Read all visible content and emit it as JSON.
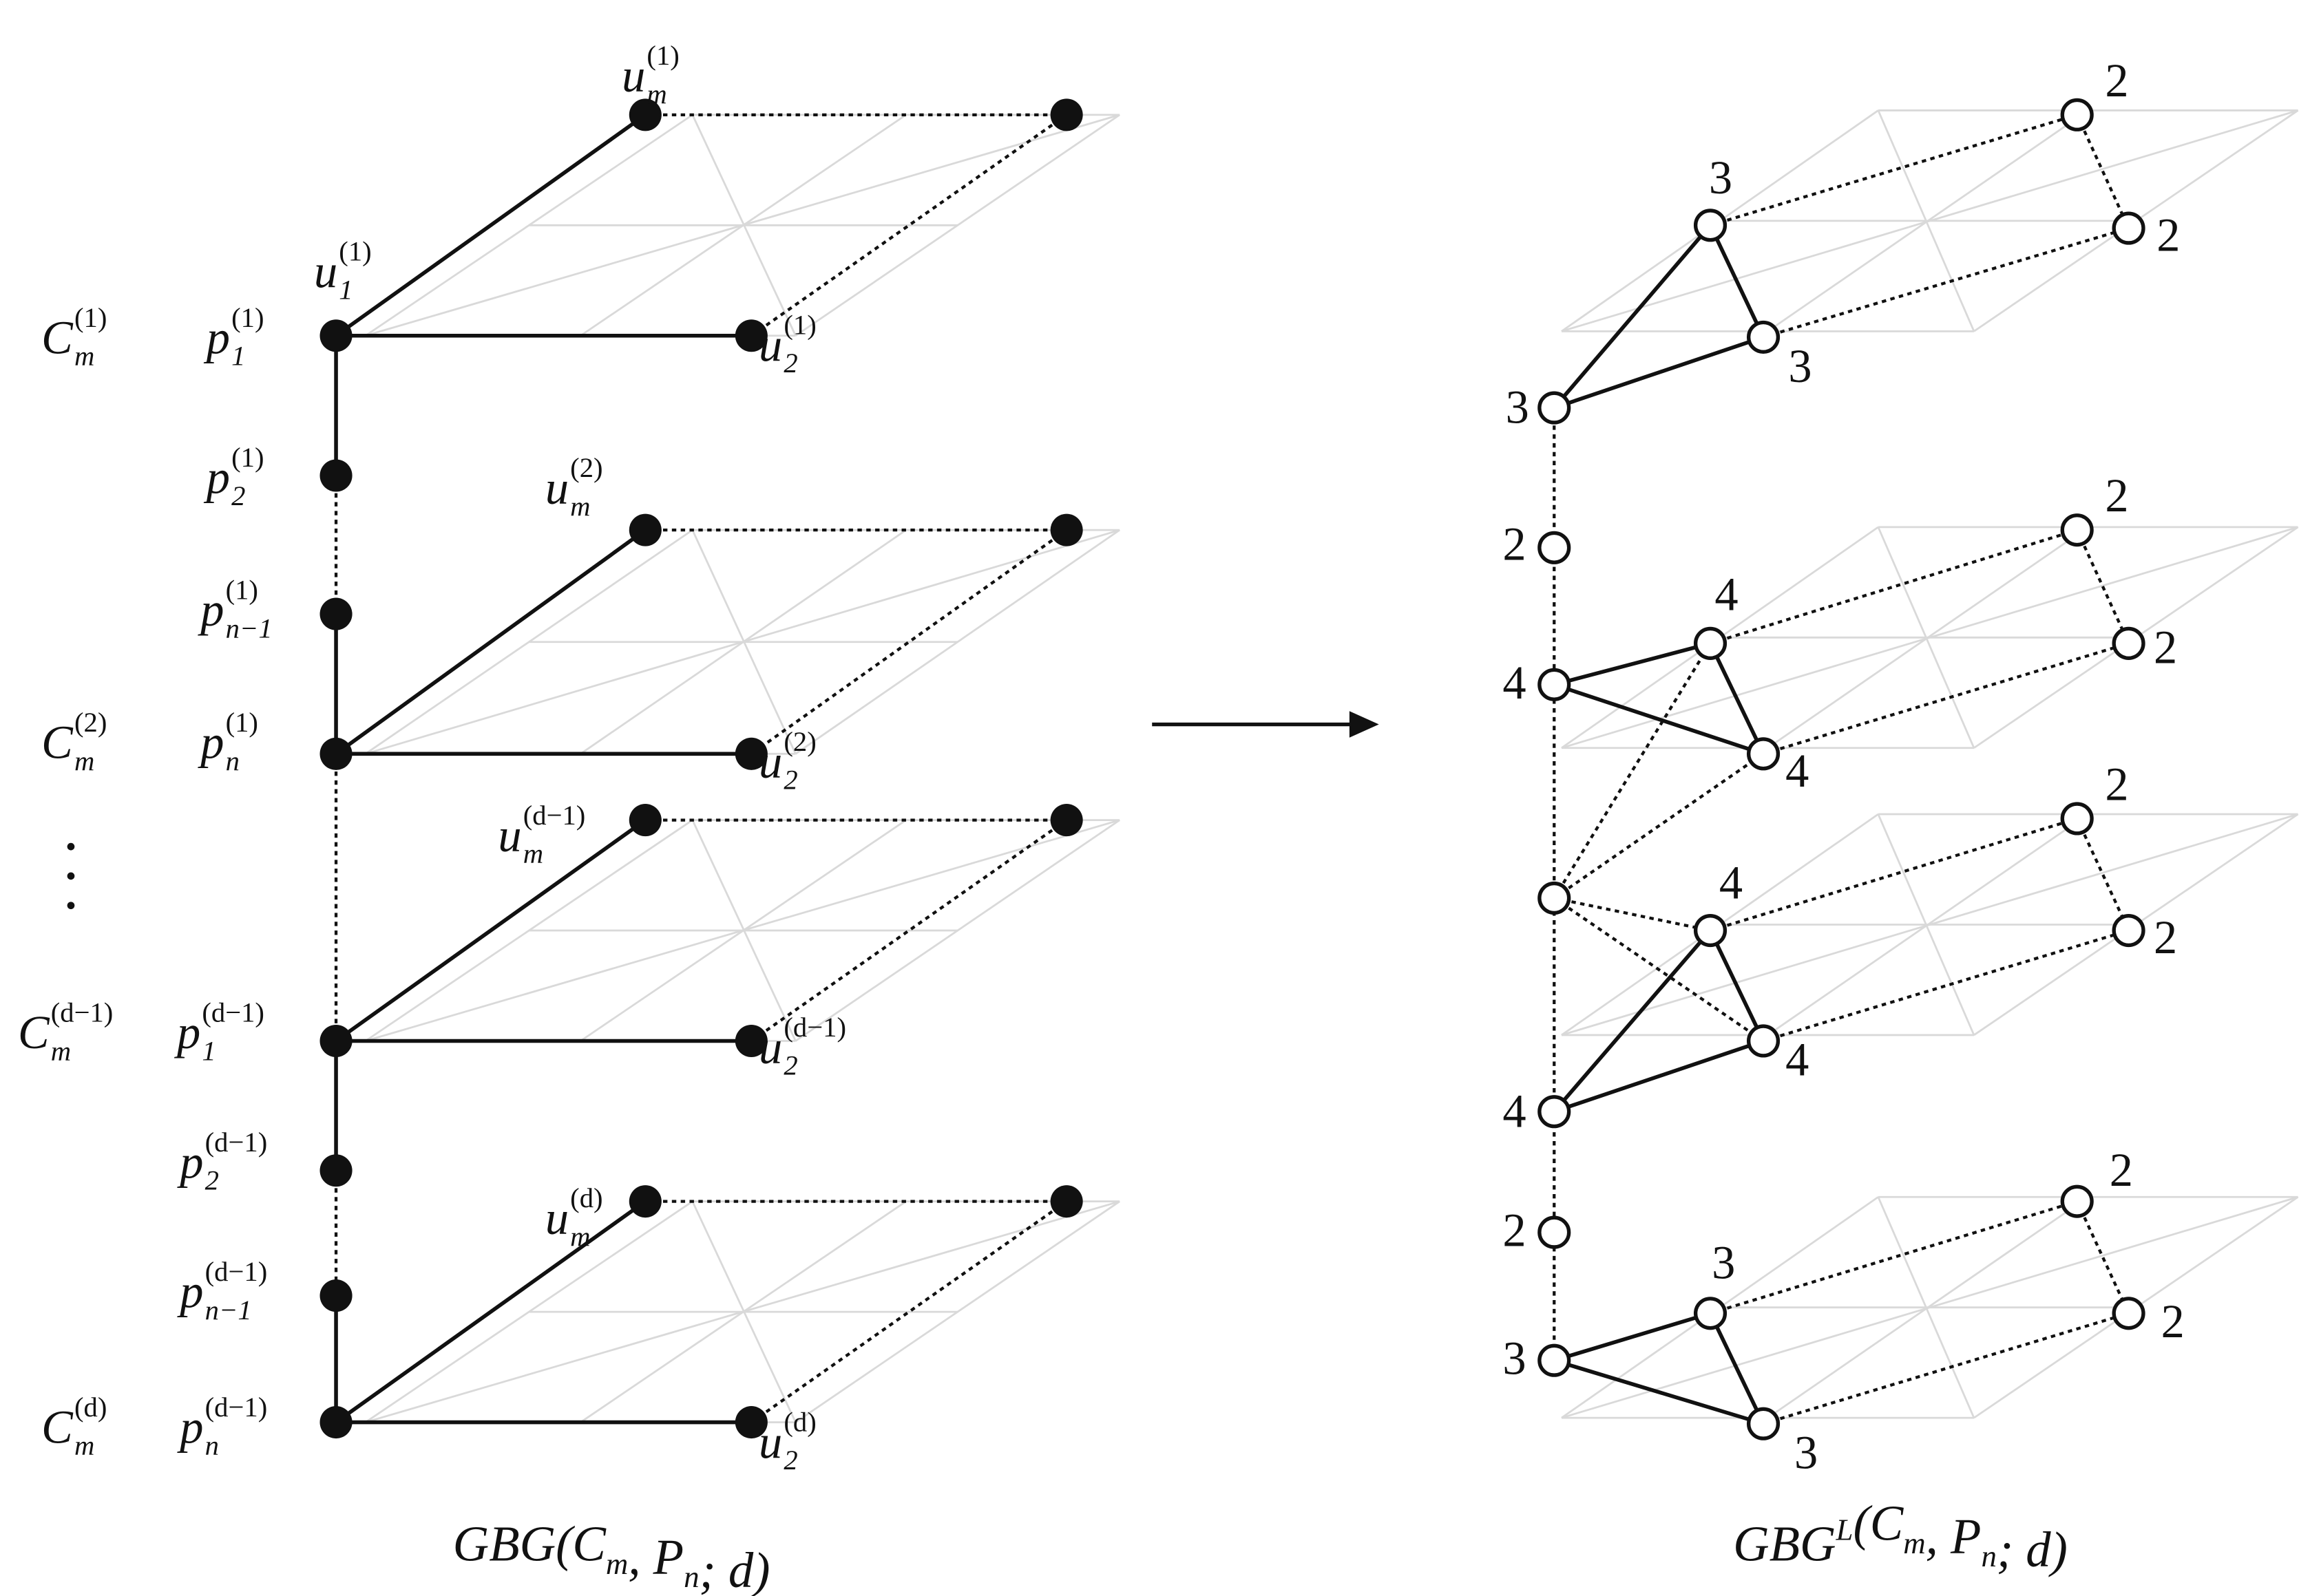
{
  "left_graph": {
    "layer_labels": [
      {
        "base": "C",
        "sub": "m",
        "sup": "(1)"
      },
      {
        "base": "C",
        "sub": "m",
        "sup": "(2)"
      },
      {
        "base": "C",
        "sub": "m",
        "sup": "(d−1)"
      },
      {
        "base": "C",
        "sub": "m",
        "sup": "(d)"
      }
    ],
    "vertex_labels": [
      {
        "base": "u",
        "sub": "m",
        "sup": "(1)"
      },
      {
        "base": "u",
        "sub": "1",
        "sup": "(1)"
      },
      {
        "base": "p",
        "sub": "1",
        "sup": "(1)"
      },
      {
        "base": "u",
        "sub": "2",
        "sup": "(1)"
      },
      {
        "base": "p",
        "sub": "2",
        "sup": "(1)"
      },
      {
        "base": "u",
        "sub": "m",
        "sup": "(2)"
      },
      {
        "base": "p",
        "sub": "n−1",
        "sup": "(1)"
      },
      {
        "base": "p",
        "sub": "n",
        "sup": "(1)"
      },
      {
        "base": "u",
        "sub": "2",
        "sup": "(2)"
      },
      {
        "base": "u",
        "sub": "m",
        "sup": "(d−1)"
      },
      {
        "base": "p",
        "sub": "1",
        "sup": "(d−1)"
      },
      {
        "base": "u",
        "sub": "2",
        "sup": "(d−1)"
      },
      {
        "base": "p",
        "sub": "2",
        "sup": "(d−1)"
      },
      {
        "base": "u",
        "sub": "m",
        "sup": "(d)"
      },
      {
        "base": "p",
        "sub": "n−1",
        "sup": "(d−1)"
      },
      {
        "base": "p",
        "sub": "n",
        "sup": "(d−1)"
      },
      {
        "base": "u",
        "sub": "2",
        "sup": "(d)"
      }
    ],
    "caption": [
      {
        "text": "GBG(C"
      },
      {
        "sub": "m"
      },
      {
        "text": ", P"
      },
      {
        "sub": "n"
      },
      {
        "text": "; d)"
      }
    ]
  },
  "right_graph": {
    "degree_labels": [
      "3",
      "2",
      "2",
      "3",
      "3",
      "2",
      "4",
      "4",
      "2",
      "2",
      "4",
      "4",
      "2",
      "2",
      "4",
      "4",
      "2",
      "3",
      "2",
      "2",
      "3",
      "3"
    ],
    "caption": [
      {
        "text": "GBG"
      },
      {
        "sup": "L"
      },
      {
        "text": "(C"
      },
      {
        "sub": "m"
      },
      {
        "text": ", P"
      },
      {
        "sub": "n"
      },
      {
        "text": "; d)"
      }
    ]
  }
}
